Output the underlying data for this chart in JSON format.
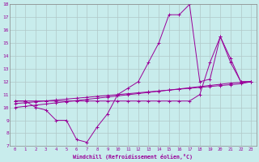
{
  "xlabel": "Windchill (Refroidissement éolien,°C)",
  "xlim": [
    -0.5,
    23.5
  ],
  "ylim": [
    7,
    18
  ],
  "yticks": [
    7,
    8,
    9,
    10,
    11,
    12,
    13,
    14,
    15,
    16,
    17,
    18
  ],
  "xticks": [
    0,
    1,
    2,
    3,
    4,
    5,
    6,
    7,
    8,
    9,
    10,
    11,
    12,
    13,
    14,
    15,
    16,
    17,
    18,
    19,
    20,
    21,
    22,
    23
  ],
  "bg_color": "#c8ecec",
  "line_color": "#990099",
  "grid_color": "#b0c8c8",
  "line1_x": [
    0,
    1,
    2,
    3,
    4,
    5,
    6,
    7,
    8,
    9,
    10,
    11,
    12,
    13,
    14,
    15,
    16,
    17,
    18,
    19,
    20,
    21,
    22,
    23
  ],
  "line1_y": [
    10.5,
    10.5,
    10.0,
    9.8,
    9.0,
    9.0,
    7.5,
    7.3,
    8.5,
    9.5,
    11.0,
    11.5,
    12.0,
    13.5,
    15.0,
    17.2,
    17.2,
    18.0,
    12.0,
    12.2,
    15.5,
    13.5,
    12.0,
    12.0
  ],
  "line2_x": [
    0,
    1,
    2,
    3,
    4,
    5,
    6,
    7,
    8,
    9,
    10,
    11,
    12,
    13,
    14,
    15,
    16,
    17,
    18,
    19,
    20,
    21,
    22,
    23
  ],
  "line2_y": [
    10.5,
    10.5,
    10.5,
    10.5,
    10.5,
    10.5,
    10.5,
    10.5,
    10.5,
    10.5,
    10.5,
    10.5,
    10.5,
    10.5,
    10.5,
    10.5,
    10.5,
    10.5,
    11.0,
    13.5,
    15.5,
    13.8,
    12.0,
    12.0
  ],
  "line3_x": [
    0,
    1,
    2,
    3,
    4,
    5,
    6,
    7,
    8,
    9,
    10,
    11,
    12,
    13,
    14,
    15,
    16,
    17,
    18,
    19,
    20,
    21,
    22,
    23
  ],
  "line3_y": [
    10.3,
    10.37,
    10.44,
    10.51,
    10.58,
    10.65,
    10.72,
    10.79,
    10.86,
    10.93,
    11.0,
    11.07,
    11.14,
    11.21,
    11.28,
    11.35,
    11.42,
    11.49,
    11.56,
    11.63,
    11.7,
    11.77,
    11.84,
    12.0
  ],
  "line4_x": [
    0,
    1,
    2,
    3,
    4,
    5,
    6,
    7,
    8,
    9,
    10,
    11,
    12,
    13,
    14,
    15,
    16,
    17,
    18,
    19,
    20,
    21,
    22,
    23
  ],
  "line4_y": [
    10.0,
    10.09,
    10.18,
    10.27,
    10.36,
    10.45,
    10.54,
    10.63,
    10.72,
    10.81,
    10.9,
    10.99,
    11.08,
    11.17,
    11.26,
    11.35,
    11.44,
    11.53,
    11.62,
    11.71,
    11.8,
    11.89,
    11.95,
    12.0
  ]
}
